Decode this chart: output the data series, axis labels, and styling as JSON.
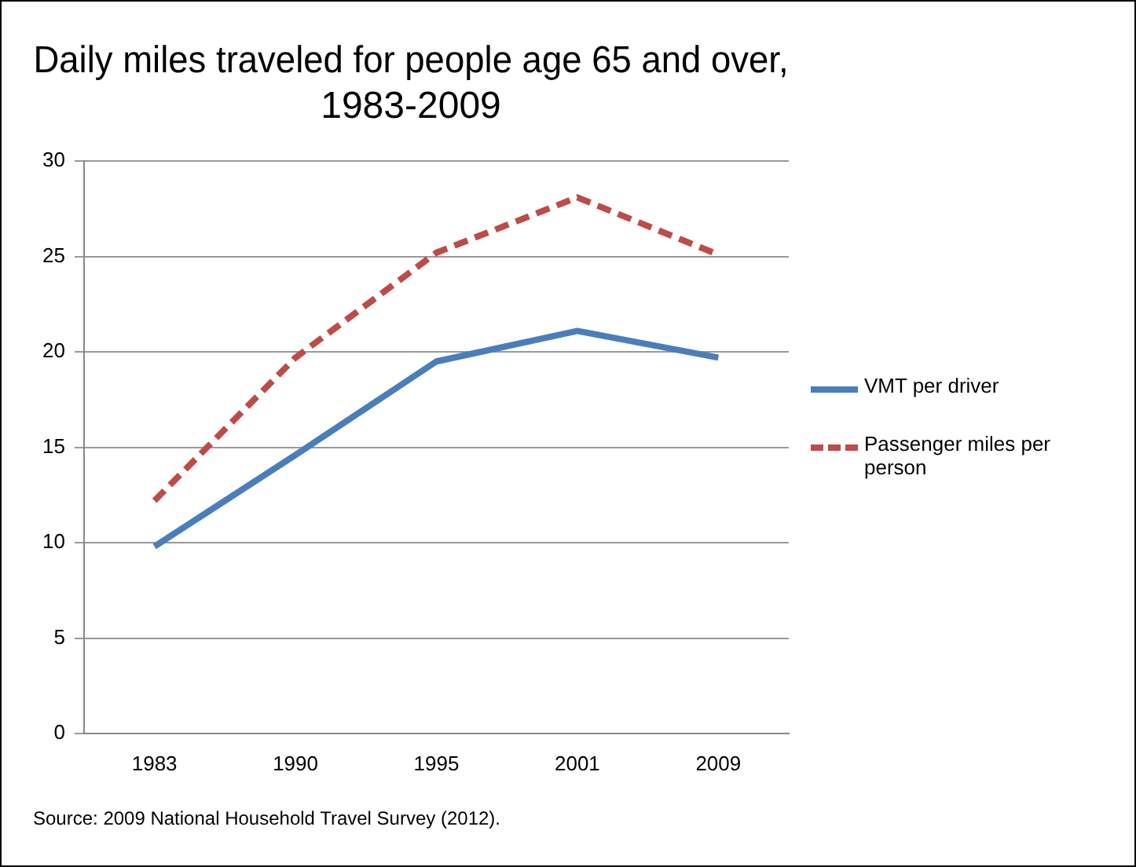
{
  "chart_data": {
    "type": "line",
    "title": "Daily miles traveled for people age 65 and over, 1983-2009",
    "categories": [
      "1983",
      "1990",
      "1995",
      "2001",
      "2009"
    ],
    "series": [
      {
        "name": "VMT per driver",
        "color": "#4a7ebb",
        "values": [
          9.8,
          14.6,
          19.5,
          21.1,
          19.7
        ],
        "line_style": "solid"
      },
      {
        "name": "Passenger miles per person",
        "color": "#be4b48",
        "values": [
          12.2,
          19.7,
          25.2,
          28.1,
          25.1
        ],
        "line_style": "dashed"
      }
    ],
    "ylim": [
      0,
      30
    ],
    "yticks": [
      0,
      5,
      10,
      15,
      20,
      25,
      30
    ],
    "grid": "y",
    "legend": "right",
    "marker": "none",
    "annotations": [
      "Source: 2009 National Household Travel Survey (2012)."
    ]
  }
}
